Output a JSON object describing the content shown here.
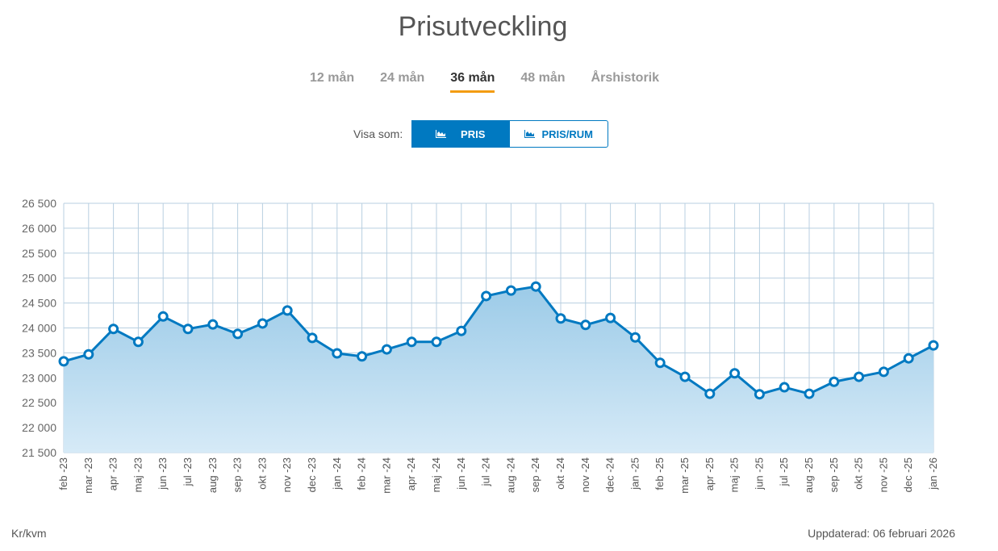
{
  "title": "Prisutveckling",
  "tabs": [
    {
      "label": "12 mån"
    },
    {
      "label": "24 mån"
    },
    {
      "label": "36 mån",
      "active": true
    },
    {
      "label": "48 mån"
    },
    {
      "label": "Årshistorik"
    }
  ],
  "view": {
    "label": "Visa som:",
    "pris": "PRIS",
    "pris_rum": "PRIS/RUM",
    "icon": "area-chart-icon"
  },
  "footer": {
    "unit": "Kr/kvm",
    "updated": "Uppdaterad: 06 februari 2026"
  },
  "colors": {
    "line": "#0079c1",
    "accent": "#f39c12",
    "grid": "#b8cfe0"
  },
  "chart_data": {
    "type": "area",
    "title": "Prisutveckling",
    "ylabel": "Kr/kvm",
    "ylim": [
      21500,
      26500
    ],
    "yticks": [
      21500,
      22000,
      22500,
      23000,
      23500,
      24000,
      24500,
      25000,
      25500,
      26000,
      26500
    ],
    "ytick_labels": [
      "21 500",
      "22 000",
      "22 500",
      "23 000",
      "23 500",
      "24 000",
      "24 500",
      "25 000",
      "25 500",
      "26 000",
      "26 500"
    ],
    "grid": true,
    "categories": [
      "feb -23",
      "mar -23",
      "apr -23",
      "maj -23",
      "jun -23",
      "jul -23",
      "aug -23",
      "sep -23",
      "okt -23",
      "nov -23",
      "dec -23",
      "jan -24",
      "feb -24",
      "mar -24",
      "apr -24",
      "maj -24",
      "jun -24",
      "jul -24",
      "aug -24",
      "sep -24",
      "okt -24",
      "nov -24",
      "dec -24",
      "jan -25",
      "feb -25",
      "mar -25",
      "apr -25",
      "maj -25",
      "jun -25",
      "jul -25",
      "aug -25",
      "sep -25",
      "okt -25",
      "nov -25",
      "dec -25",
      "jan -26"
    ],
    "values": [
      23330,
      23470,
      23980,
      23720,
      24230,
      23980,
      24070,
      23880,
      24090,
      24350,
      23800,
      23490,
      23430,
      23570,
      23720,
      23720,
      23940,
      24640,
      24750,
      24830,
      24190,
      24060,
      24200,
      23810,
      23300,
      23020,
      22680,
      23090,
      22670,
      22810,
      22680,
      22920,
      23020,
      23120,
      23390,
      23650
    ]
  }
}
